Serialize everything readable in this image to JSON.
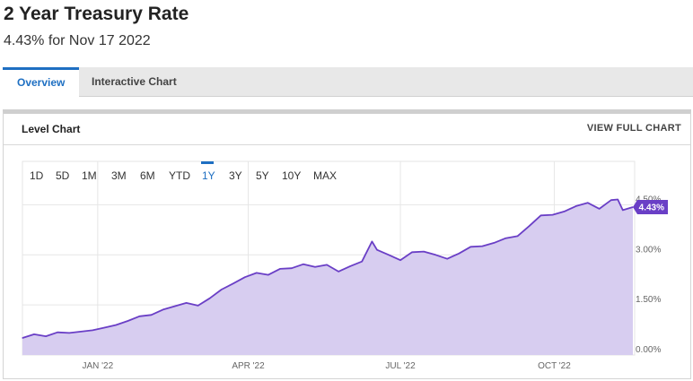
{
  "header": {
    "title": "2 Year Treasury Rate",
    "subtitle": "4.43% for Nov 17 2022"
  },
  "tabs": [
    {
      "label": "Overview",
      "active": true
    },
    {
      "label": "Interactive Chart",
      "active": false
    }
  ],
  "panel": {
    "title": "Level Chart",
    "full_chart_label": "VIEW FULL CHART"
  },
  "colors": {
    "line": "#6a3fc6",
    "fill": "#d7cdf0",
    "accent": "#1e6fc2"
  },
  "chart_data": {
    "type": "area",
    "ranges": [
      {
        "label": "1D",
        "active": false
      },
      {
        "label": "5D",
        "active": false
      },
      {
        "label": "1M",
        "active": false
      },
      {
        "label": "3M",
        "active": false
      },
      {
        "label": "6M",
        "active": false
      },
      {
        "label": "YTD",
        "active": false
      },
      {
        "label": "1Y",
        "active": true
      },
      {
        "label": "3Y",
        "active": false
      },
      {
        "label": "5Y",
        "active": false
      },
      {
        "label": "10Y",
        "active": false
      },
      {
        "label": "MAX",
        "active": false
      }
    ],
    "x_ticks": [
      {
        "label": "JAN '22",
        "x": "2022-01-01"
      },
      {
        "label": "APR '22",
        "x": "2022-04-01"
      },
      {
        "label": "JUL '22",
        "x": "2022-07-01"
      },
      {
        "label": "OCT '22",
        "x": "2022-10-01"
      }
    ],
    "y_ticks": [
      {
        "label": "0.00%",
        "value": 0.0
      },
      {
        "label": "1.50%",
        "value": 1.5
      },
      {
        "label": "3.00%",
        "value": 3.0
      },
      {
        "label": "4.50%",
        "value": 4.5
      }
    ],
    "xlim": [
      "2021-11-17",
      "2022-11-17"
    ],
    "ylim": [
      0.0,
      5.8
    ],
    "grid": true,
    "last_value_label": "4.43%",
    "x": [
      "2021-11-17",
      "2021-11-24",
      "2021-12-01",
      "2021-12-08",
      "2021-12-15",
      "2021-12-22",
      "2021-12-29",
      "2022-01-05",
      "2022-01-12",
      "2022-01-19",
      "2022-01-26",
      "2022-02-02",
      "2022-02-09",
      "2022-02-16",
      "2022-02-23",
      "2022-03-02",
      "2022-03-09",
      "2022-03-16",
      "2022-03-23",
      "2022-03-30",
      "2022-04-06",
      "2022-04-13",
      "2022-04-20",
      "2022-04-27",
      "2022-05-04",
      "2022-05-11",
      "2022-05-18",
      "2022-05-25",
      "2022-06-01",
      "2022-06-08",
      "2022-06-14",
      "2022-06-17",
      "2022-06-24",
      "2022-07-01",
      "2022-07-08",
      "2022-07-15",
      "2022-07-22",
      "2022-07-29",
      "2022-08-05",
      "2022-08-12",
      "2022-08-19",
      "2022-08-26",
      "2022-09-02",
      "2022-09-09",
      "2022-09-16",
      "2022-09-23",
      "2022-09-30",
      "2022-10-07",
      "2022-10-14",
      "2022-10-21",
      "2022-10-28",
      "2022-11-04",
      "2022-11-08",
      "2022-11-11",
      "2022-11-17"
    ],
    "values": [
      0.51,
      0.62,
      0.56,
      0.68,
      0.66,
      0.7,
      0.74,
      0.82,
      0.9,
      1.02,
      1.16,
      1.2,
      1.36,
      1.46,
      1.56,
      1.48,
      1.7,
      1.96,
      2.14,
      2.33,
      2.46,
      2.4,
      2.58,
      2.6,
      2.72,
      2.64,
      2.7,
      2.5,
      2.66,
      2.8,
      3.4,
      3.15,
      3.0,
      2.84,
      3.08,
      3.1,
      3.0,
      2.88,
      3.04,
      3.24,
      3.26,
      3.36,
      3.5,
      3.56,
      3.86,
      4.18,
      4.2,
      4.3,
      4.46,
      4.56,
      4.38,
      4.64,
      4.66,
      4.34,
      4.43
    ]
  }
}
